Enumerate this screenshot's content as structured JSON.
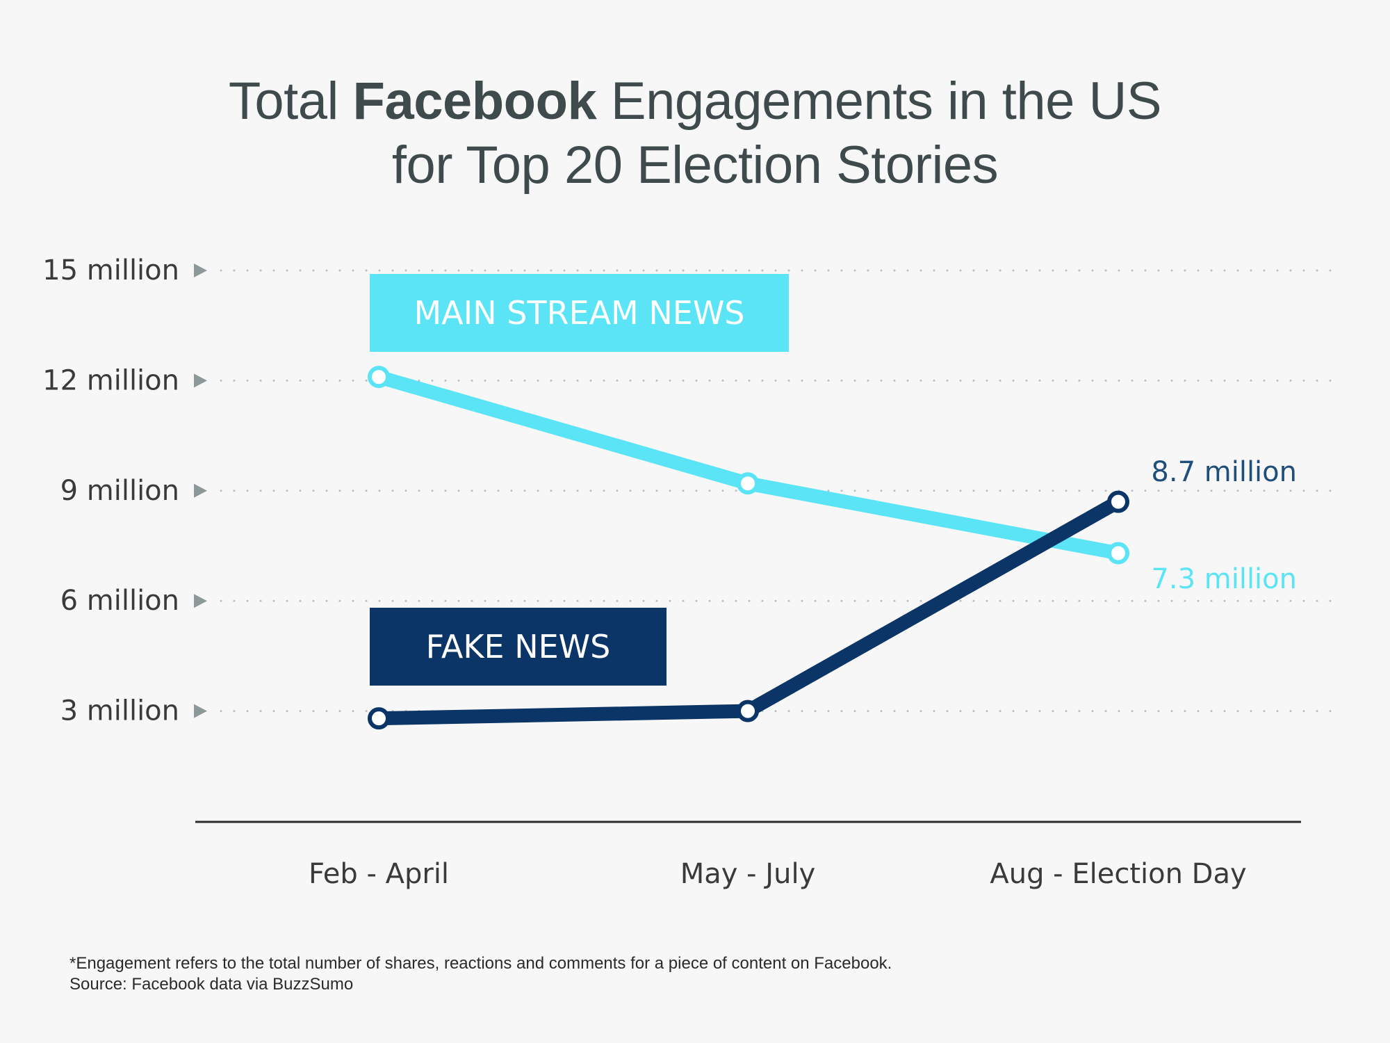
{
  "title": {
    "prefix": "Total ",
    "bold": "Facebook",
    "suffix": " Engagements in the US",
    "line2": "for Top 20 Election Stories"
  },
  "chart_data": {
    "type": "line",
    "title": "Total Facebook Engagements in the US for Top 20 Election Stories",
    "categories": [
      "Feb - April",
      "May - July",
      "Aug - Election Day"
    ],
    "y_ticks": [
      3,
      6,
      9,
      12,
      15
    ],
    "y_tick_labels": [
      "3 million",
      "6 million",
      "9 million",
      "12 million",
      "15 million"
    ],
    "ylim": [
      0,
      15
    ],
    "grid": "dotted horizontal",
    "series": [
      {
        "name": "MAIN STREAM NEWS",
        "values": [
          12.1,
          9.2,
          7.3
        ],
        "color": "#5ae4f6",
        "end_label": "7.3 million"
      },
      {
        "name": "FAKE NEWS",
        "values": [
          2.8,
          3.0,
          8.7
        ],
        "color": "#0b3566",
        "end_label": "8.7 million"
      }
    ]
  },
  "colors": {
    "main_stream": "#5ae4f6",
    "fake": "#0b3566",
    "fake_label": "#1f4e7a",
    "axis_text": "#3a3a3a",
    "title": "#3f4a4c",
    "grid": "#b8c0c0",
    "arrow": "#8d9898"
  },
  "footnote": {
    "line1": "*Engagement refers to the total number of shares, reactions and comments for a piece of content on Facebook.",
    "line2": "Source: Facebook data via BuzzSumo"
  }
}
